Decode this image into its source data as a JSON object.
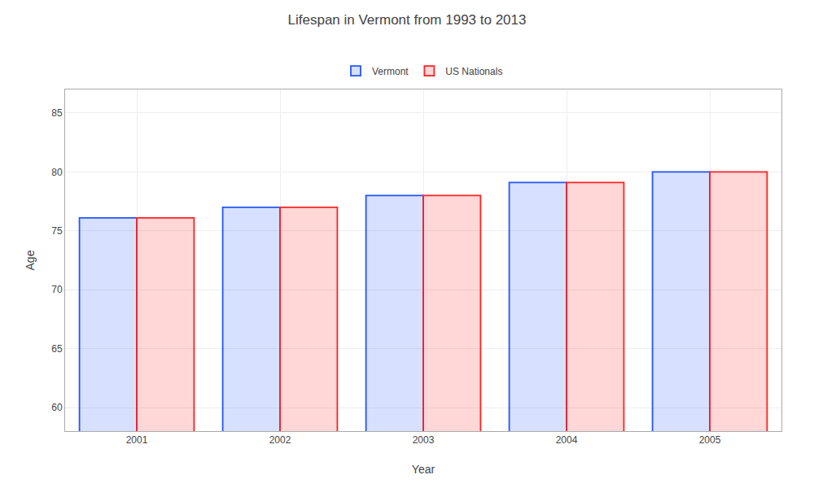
{
  "chart_data": {
    "type": "bar",
    "title": "Lifespan in Vermont from 1993 to 2013",
    "xlabel": "Year",
    "ylabel": "Age",
    "categories": [
      "2001",
      "2002",
      "2003",
      "2004",
      "2005"
    ],
    "series": [
      {
        "name": "Vermont",
        "color": "#2255ff",
        "values": [
          76.1,
          77.0,
          78.0,
          79.1,
          80.0
        ]
      },
      {
        "name": "US Nationals",
        "color": "#ff2222",
        "values": [
          76.1,
          77.0,
          78.0,
          79.1,
          80.0
        ]
      }
    ],
    "ylim": [
      58,
      87
    ],
    "yticks": [
      60,
      65,
      70,
      75,
      80,
      85
    ],
    "grid": true,
    "legend": "upper center"
  }
}
